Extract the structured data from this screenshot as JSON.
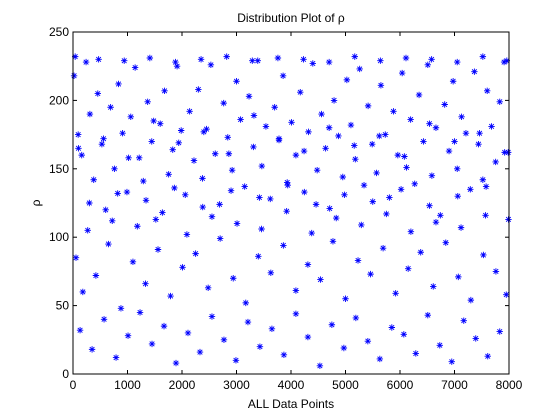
{
  "chart_data": {
    "type": "scatter",
    "title": "Distribution Plot of ρ",
    "xlabel": "ALL Data Points",
    "ylabel": "ρ",
    "xlim": [
      0,
      8000
    ],
    "ylim": [
      0,
      250
    ],
    "x_ticks": [
      0,
      1000,
      2000,
      3000,
      4000,
      5000,
      6000,
      7000,
      8000
    ],
    "y_ticks": [
      0,
      50,
      100,
      150,
      200,
      250
    ],
    "grid": false,
    "legend": "none",
    "marker": "asterisk",
    "series": [
      {
        "color": "#0000ff",
        "x": [
          20,
          95,
          160,
          240,
          310,
          380,
          455,
          530,
          600,
          690,
          760,
          835,
          910,
          990,
          1060,
          1140,
          1215,
          1290,
          1370,
          1445,
          1520,
          1600,
          1680,
          1755,
          1830,
          1910,
          1985,
          2060,
          2140,
          2220,
          2300,
          2375,
          2450,
          2530,
          2610,
          2690,
          2765,
          2840,
          2920,
          3000,
          3075,
          3150,
          3230,
          3310,
          3390,
          3465,
          3540,
          3620,
          3700,
          3780,
          3855,
          3930,
          4010,
          4090,
          4170,
          4245,
          4320,
          4400,
          4480,
          4560,
          4635,
          4710,
          4790,
          4870,
          4950,
          5025,
          5100,
          5180,
          5260,
          5340,
          5415,
          5490,
          5570,
          5650,
          5730,
          5805,
          5880,
          5960,
          6040,
          6120,
          6195,
          6270,
          6350,
          6430,
          6510,
          6585,
          6660,
          6740,
          6820,
          6900,
          6975,
          7050,
          7130,
          7210,
          7290,
          7365,
          7440,
          7520,
          7600,
          7680,
          7755,
          7830,
          7910,
          7985,
          55,
          180,
          420,
          650,
          880,
          1100,
          1330,
          1560,
          1790,
          2010,
          2250,
          2480,
          2700,
          2940,
          3170,
          3400,
          3630,
          3860,
          4090,
          4310,
          4540,
          4770,
          5000,
          5230,
          5460,
          5690,
          5920,
          6150,
          6380,
          6610,
          6840,
          7070,
          7300,
          7530,
          7760,
          7950,
          130,
          350,
          570,
          790,
          1010,
          1230,
          1450,
          1670,
          1890,
          2110,
          2330,
          2550,
          2770,
          2990,
          3210,
          3430,
          3650,
          3870,
          4090,
          4310,
          4530,
          4750,
          4970,
          5190,
          5410,
          5630,
          5850,
          6070,
          6290,
          6510,
          6730,
          6950,
          7170,
          7390,
          7610,
          7830,
          270,
          720,
          1180,
          1640,
          2090,
          2550,
          3010,
          3460,
          3920,
          4380,
          4830,
          5290,
          5750,
          6200,
          6660,
          7120,
          7570,
          7990,
          40,
          470,
          940,
          1410,
          1880,
          2350,
          2820,
          3290,
          3760,
          4230,
          4700,
          5170,
          5640,
          6110,
          6580,
          7050,
          7520,
          7960,
          300,
          820,
          1340,
          1860,
          2380,
          2900,
          3420,
          3940,
          4460,
          4980,
          5500,
          6020,
          6540,
          7060,
          7580,
          100,
          560,
          1020,
          1480,
          1940,
          2400,
          2860,
          3320,
          3780,
          4240,
          4700,
          5160,
          5620,
          6080,
          6540,
          7000,
          7460,
          7920
        ],
        "y": [
          218,
          175,
          160,
          228,
          190,
          142,
          205,
          168,
          120,
          195,
          150,
          212,
          176,
          133,
          188,
          224,
          158,
          141,
          199,
          170,
          113,
          183,
          207,
          146,
          164,
          225,
          178,
          131,
          192,
          156,
          208,
          143,
          179,
          226,
          161,
          124,
          198,
          173,
          149,
          214,
          186,
          137,
          203,
          166,
          229,
          152,
          181,
          128,
          195,
          172,
          218,
          140,
          184,
          160,
          206,
          133,
          177,
          227,
          149,
          190,
          165,
          121,
          200,
          174,
          144,
          215,
          182,
          157,
          223,
          138,
          196,
          168,
          147,
          211,
          175,
          129,
          192,
          160,
          220,
          151,
          186,
          139,
          204,
          170,
          226,
          145,
          180,
          116,
          197,
          163,
          214,
          150,
          188,
          176,
          135,
          221,
          168,
          142,
          207,
          181,
          155,
          199,
          228,
          162,
          85,
          60,
          72,
          95,
          48,
          82,
          66,
          91,
          57,
          78,
          88,
          63,
          99,
          70,
          52,
          86,
          74,
          94,
          61,
          80,
          69,
          97,
          55,
          83,
          73,
          92,
          59,
          77,
          89,
          64,
          96,
          71,
          54,
          87,
          75,
          58,
          32,
          18,
          40,
          12,
          28,
          45,
          22,
          35,
          8,
          30,
          16,
          42,
          25,
          10,
          38,
          20,
          33,
          14,
          44,
          27,
          6,
          36,
          19,
          41,
          24,
          11,
          34,
          29,
          15,
          43,
          21,
          9,
          39,
          26,
          13,
          31,
          105,
          112,
          108,
          118,
          102,
          115,
          110,
          106,
          119,
          103,
          114,
          109,
          117,
          104,
          111,
          107,
          116,
          113,
          232,
          230,
          229,
          231,
          228,
          230,
          232,
          229,
          231,
          230,
          228,
          232,
          229,
          231,
          230,
          228,
          232,
          229,
          125,
          132,
          127,
          136,
          122,
          134,
          129,
          138,
          124,
          131,
          126,
          135,
          123,
          130,
          137,
          165,
          172,
          158,
          185,
          169,
          177,
          161,
          189,
          171,
          163,
          180,
          167,
          174,
          159,
          183,
          170,
          176,
          162
        ]
      }
    ]
  }
}
